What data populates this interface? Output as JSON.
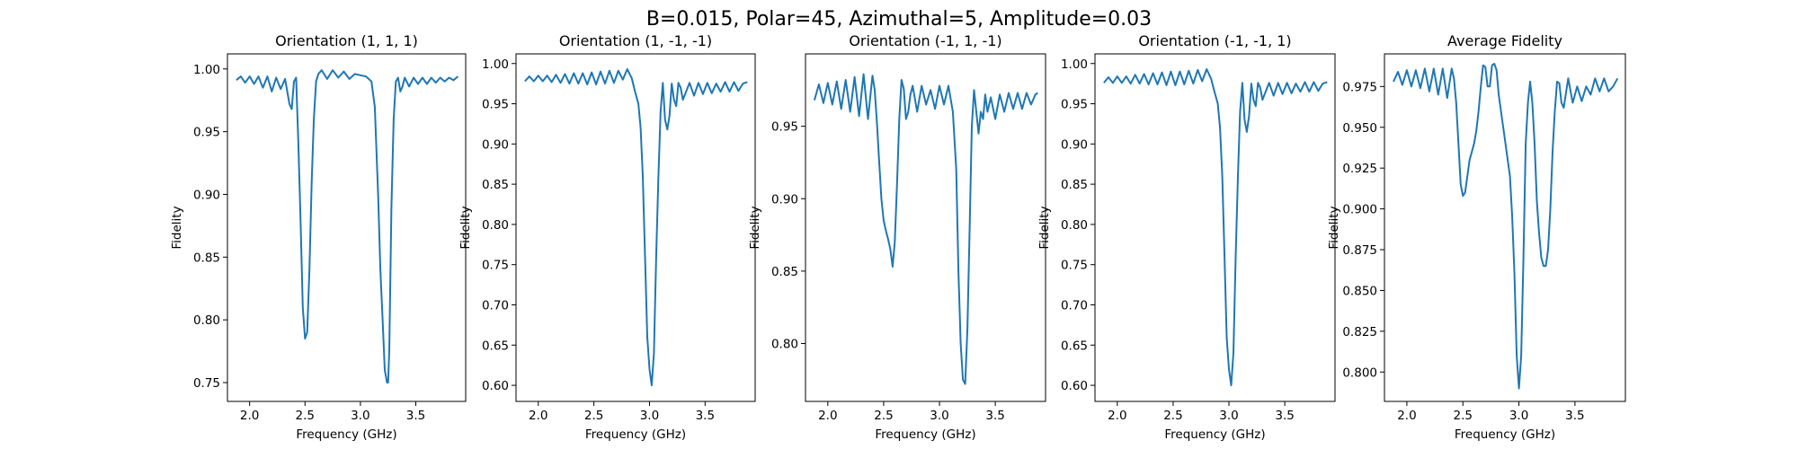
{
  "figure": {
    "suptitle": "B=0.015, Polar=45, Azimuthal=5, Amplitude=0.03"
  },
  "chart_data": [
    {
      "type": "line",
      "title": "Orientation (1, 1, 1)",
      "xlabel": "Frequency (GHz)",
      "ylabel": "Fidelity",
      "xlim": [
        1.8,
        3.95
      ],
      "ylim": [
        0.735,
        1.012
      ],
      "xticks": [
        "2.0",
        "2.5",
        "3.0",
        "3.5"
      ],
      "yticks": [
        "0.75",
        "0.80",
        "0.85",
        "0.90",
        "0.95",
        "1.00"
      ],
      "color": "#1f77b4",
      "series": [
        {
          "x": [
            1.88,
            1.92,
            1.96,
            2.0,
            2.04,
            2.08,
            2.12,
            2.16,
            2.2,
            2.24,
            2.28,
            2.32,
            2.36,
            2.38,
            2.4,
            2.42,
            2.44,
            2.46,
            2.48,
            2.5,
            2.52,
            2.54,
            2.56,
            2.58,
            2.6,
            2.62,
            2.65,
            2.7,
            2.75,
            2.8,
            2.85,
            2.9,
            2.95,
            3.0,
            3.05,
            3.1,
            3.13,
            3.16,
            3.18,
            3.2,
            3.22,
            3.24,
            3.25,
            3.26,
            3.28,
            3.3,
            3.32,
            3.34,
            3.36,
            3.38,
            3.4,
            3.44,
            3.48,
            3.52,
            3.56,
            3.6,
            3.64,
            3.68,
            3.72,
            3.76,
            3.8,
            3.84,
            3.88
          ],
          "y": [
            0.991,
            0.994,
            0.989,
            0.994,
            0.988,
            0.994,
            0.985,
            0.994,
            0.982,
            0.993,
            0.984,
            0.992,
            0.972,
            0.968,
            0.99,
            0.993,
            0.94,
            0.88,
            0.81,
            0.785,
            0.79,
            0.84,
            0.91,
            0.96,
            0.99,
            0.996,
            0.999,
            0.992,
            0.999,
            0.993,
            0.998,
            0.992,
            0.996,
            0.995,
            0.994,
            0.99,
            0.97,
            0.9,
            0.84,
            0.8,
            0.76,
            0.75,
            0.75,
            0.775,
            0.89,
            0.96,
            0.99,
            0.993,
            0.982,
            0.986,
            0.993,
            0.986,
            0.993,
            0.988,
            0.993,
            0.988,
            0.993,
            0.989,
            0.993,
            0.99,
            0.993,
            0.991,
            0.994
          ]
        }
      ]
    },
    {
      "type": "line",
      "title": "Orientation (1, -1, -1)",
      "xlabel": "Frequency (GHz)",
      "ylabel": "Fidelity",
      "xlim": [
        1.8,
        3.95
      ],
      "ylim": [
        0.58,
        1.012
      ],
      "xticks": [
        "2.0",
        "2.5",
        "3.0",
        "3.5"
      ],
      "yticks": [
        "0.60",
        "0.65",
        "0.70",
        "0.75",
        "0.80",
        "0.85",
        "0.90",
        "0.95",
        "1.00"
      ],
      "color": "#1f77b4",
      "series": [
        {
          "x": [
            1.88,
            1.92,
            1.96,
            2.0,
            2.04,
            2.08,
            2.12,
            2.16,
            2.2,
            2.24,
            2.28,
            2.32,
            2.36,
            2.4,
            2.44,
            2.48,
            2.52,
            2.56,
            2.6,
            2.64,
            2.68,
            2.72,
            2.76,
            2.8,
            2.84,
            2.87,
            2.9,
            2.92,
            2.94,
            2.96,
            2.98,
            3.0,
            3.02,
            3.04,
            3.06,
            3.08,
            3.1,
            3.12,
            3.14,
            3.16,
            3.18,
            3.2,
            3.22,
            3.24,
            3.26,
            3.28,
            3.3,
            3.32,
            3.36,
            3.4,
            3.44,
            3.48,
            3.52,
            3.56,
            3.6,
            3.64,
            3.68,
            3.72,
            3.76,
            3.8,
            3.84,
            3.88
          ],
          "y": [
            0.978,
            0.984,
            0.978,
            0.985,
            0.978,
            0.985,
            0.977,
            0.986,
            0.976,
            0.987,
            0.975,
            0.988,
            0.975,
            0.988,
            0.974,
            0.989,
            0.974,
            0.99,
            0.975,
            0.991,
            0.976,
            0.991,
            0.98,
            0.993,
            0.982,
            0.965,
            0.95,
            0.92,
            0.86,
            0.76,
            0.66,
            0.62,
            0.6,
            0.64,
            0.76,
            0.86,
            0.94,
            0.976,
            0.93,
            0.918,
            0.935,
            0.975,
            0.955,
            0.947,
            0.976,
            0.97,
            0.955,
            0.962,
            0.976,
            0.96,
            0.976,
            0.962,
            0.976,
            0.963,
            0.975,
            0.965,
            0.977,
            0.965,
            0.977,
            0.966,
            0.975,
            0.977
          ]
        }
      ]
    },
    {
      "type": "line",
      "title": "Orientation (-1, 1, -1)",
      "xlabel": "Frequency (GHz)",
      "ylabel": "Fidelity",
      "xlim": [
        1.8,
        3.95
      ],
      "ylim": [
        0.76,
        1.0
      ],
      "xticks": [
        "2.0",
        "2.5",
        "3.0",
        "3.5"
      ],
      "yticks": [
        "0.80",
        "0.85",
        "0.90",
        "0.95"
      ],
      "color": "#1f77b4",
      "series": [
        {
          "x": [
            1.88,
            1.92,
            1.96,
            2.0,
            2.04,
            2.08,
            2.12,
            2.16,
            2.2,
            2.24,
            2.28,
            2.32,
            2.36,
            2.4,
            2.42,
            2.44,
            2.46,
            2.48,
            2.5,
            2.52,
            2.54,
            2.56,
            2.58,
            2.6,
            2.62,
            2.64,
            2.66,
            2.68,
            2.7,
            2.72,
            2.74,
            2.76,
            2.8,
            2.84,
            2.88,
            2.92,
            2.96,
            3.0,
            3.04,
            3.08,
            3.12,
            3.15,
            3.17,
            3.19,
            3.21,
            3.23,
            3.25,
            3.27,
            3.29,
            3.31,
            3.33,
            3.35,
            3.37,
            3.39,
            3.41,
            3.43,
            3.46,
            3.5,
            3.54,
            3.58,
            3.62,
            3.66,
            3.7,
            3.74,
            3.78,
            3.82,
            3.86,
            3.88
          ],
          "y": [
            0.968,
            0.979,
            0.966,
            0.98,
            0.965,
            0.981,
            0.962,
            0.982,
            0.96,
            0.984,
            0.957,
            0.986,
            0.955,
            0.985,
            0.975,
            0.952,
            0.925,
            0.9,
            0.885,
            0.878,
            0.872,
            0.865,
            0.853,
            0.87,
            0.91,
            0.955,
            0.982,
            0.976,
            0.955,
            0.96,
            0.972,
            0.978,
            0.96,
            0.978,
            0.965,
            0.975,
            0.962,
            0.978,
            0.965,
            0.978,
            0.96,
            0.92,
            0.85,
            0.8,
            0.775,
            0.772,
            0.81,
            0.88,
            0.95,
            0.975,
            0.96,
            0.945,
            0.96,
            0.955,
            0.972,
            0.96,
            0.97,
            0.955,
            0.972,
            0.96,
            0.973,
            0.962,
            0.973,
            0.962,
            0.973,
            0.965,
            0.972,
            0.973
          ]
        }
      ]
    },
    {
      "type": "line",
      "title": "Orientation (-1, -1, 1)",
      "xlabel": "Frequency (GHz)",
      "ylabel": "Fidelity",
      "xlim": [
        1.8,
        3.95
      ],
      "ylim": [
        0.58,
        1.012
      ],
      "xticks": [
        "2.0",
        "2.5",
        "3.0",
        "3.5"
      ],
      "yticks": [
        "0.60",
        "0.65",
        "0.70",
        "0.75",
        "0.80",
        "0.85",
        "0.90",
        "0.95",
        "1.00"
      ],
      "color": "#1f77b4",
      "series": [
        {
          "x": [
            1.88,
            1.92,
            1.96,
            2.0,
            2.04,
            2.08,
            2.12,
            2.16,
            2.2,
            2.24,
            2.28,
            2.32,
            2.36,
            2.4,
            2.44,
            2.48,
            2.52,
            2.56,
            2.6,
            2.64,
            2.68,
            2.72,
            2.76,
            2.8,
            2.84,
            2.87,
            2.9,
            2.92,
            2.94,
            2.96,
            2.98,
            3.0,
            3.02,
            3.04,
            3.06,
            3.08,
            3.1,
            3.12,
            3.14,
            3.16,
            3.18,
            3.2,
            3.22,
            3.24,
            3.26,
            3.28,
            3.3,
            3.32,
            3.36,
            3.4,
            3.44,
            3.48,
            3.52,
            3.56,
            3.6,
            3.64,
            3.68,
            3.72,
            3.76,
            3.8,
            3.84,
            3.88
          ],
          "y": [
            0.976,
            0.983,
            0.976,
            0.984,
            0.976,
            0.984,
            0.975,
            0.986,
            0.975,
            0.987,
            0.974,
            0.988,
            0.974,
            0.989,
            0.973,
            0.99,
            0.973,
            0.99,
            0.974,
            0.991,
            0.975,
            0.992,
            0.978,
            0.993,
            0.981,
            0.965,
            0.95,
            0.92,
            0.86,
            0.76,
            0.66,
            0.62,
            0.6,
            0.64,
            0.76,
            0.86,
            0.94,
            0.976,
            0.93,
            0.915,
            0.935,
            0.975,
            0.955,
            0.947,
            0.976,
            0.97,
            0.955,
            0.962,
            0.976,
            0.96,
            0.976,
            0.962,
            0.976,
            0.963,
            0.975,
            0.965,
            0.977,
            0.965,
            0.977,
            0.966,
            0.975,
            0.977
          ]
        }
      ]
    },
    {
      "type": "line",
      "title": "Average Fidelity",
      "xlabel": "Frequency (GHz)",
      "ylabel": "Fidelity",
      "xlim": [
        1.8,
        3.95
      ],
      "ylim": [
        0.782,
        0.995
      ],
      "xticks": [
        "2.0",
        "2.5",
        "3.0",
        "3.5"
      ],
      "yticks": [
        "0.800",
        "0.825",
        "0.850",
        "0.875",
        "0.900",
        "0.925",
        "0.950",
        "0.975"
      ],
      "color": "#1f77b4",
      "series": [
        {
          "x": [
            1.88,
            1.92,
            1.96,
            2.0,
            2.04,
            2.08,
            2.12,
            2.16,
            2.2,
            2.24,
            2.28,
            2.32,
            2.36,
            2.4,
            2.42,
            2.44,
            2.46,
            2.48,
            2.5,
            2.52,
            2.54,
            2.56,
            2.58,
            2.6,
            2.62,
            2.64,
            2.66,
            2.68,
            2.7,
            2.72,
            2.74,
            2.76,
            2.78,
            2.8,
            2.82,
            2.84,
            2.86,
            2.88,
            2.9,
            2.92,
            2.94,
            2.96,
            2.98,
            3.0,
            3.02,
            3.04,
            3.06,
            3.08,
            3.1,
            3.12,
            3.14,
            3.16,
            3.18,
            3.2,
            3.22,
            3.24,
            3.26,
            3.28,
            3.3,
            3.32,
            3.34,
            3.36,
            3.38,
            3.4,
            3.44,
            3.48,
            3.52,
            3.56,
            3.6,
            3.64,
            3.68,
            3.72,
            3.76,
            3.8,
            3.84,
            3.88
          ],
          "y": [
            0.978,
            0.984,
            0.976,
            0.985,
            0.975,
            0.985,
            0.974,
            0.986,
            0.972,
            0.986,
            0.97,
            0.986,
            0.968,
            0.986,
            0.98,
            0.965,
            0.94,
            0.915,
            0.908,
            0.91,
            0.92,
            0.93,
            0.935,
            0.94,
            0.948,
            0.96,
            0.975,
            0.988,
            0.987,
            0.975,
            0.975,
            0.988,
            0.989,
            0.985,
            0.97,
            0.96,
            0.95,
            0.94,
            0.93,
            0.92,
            0.895,
            0.86,
            0.81,
            0.79,
            0.81,
            0.87,
            0.94,
            0.965,
            0.978,
            0.965,
            0.94,
            0.905,
            0.885,
            0.87,
            0.865,
            0.865,
            0.875,
            0.9,
            0.935,
            0.96,
            0.978,
            0.977,
            0.965,
            0.962,
            0.98,
            0.965,
            0.975,
            0.966,
            0.975,
            0.97,
            0.98,
            0.972,
            0.98,
            0.972,
            0.975,
            0.98
          ]
        }
      ]
    }
  ]
}
